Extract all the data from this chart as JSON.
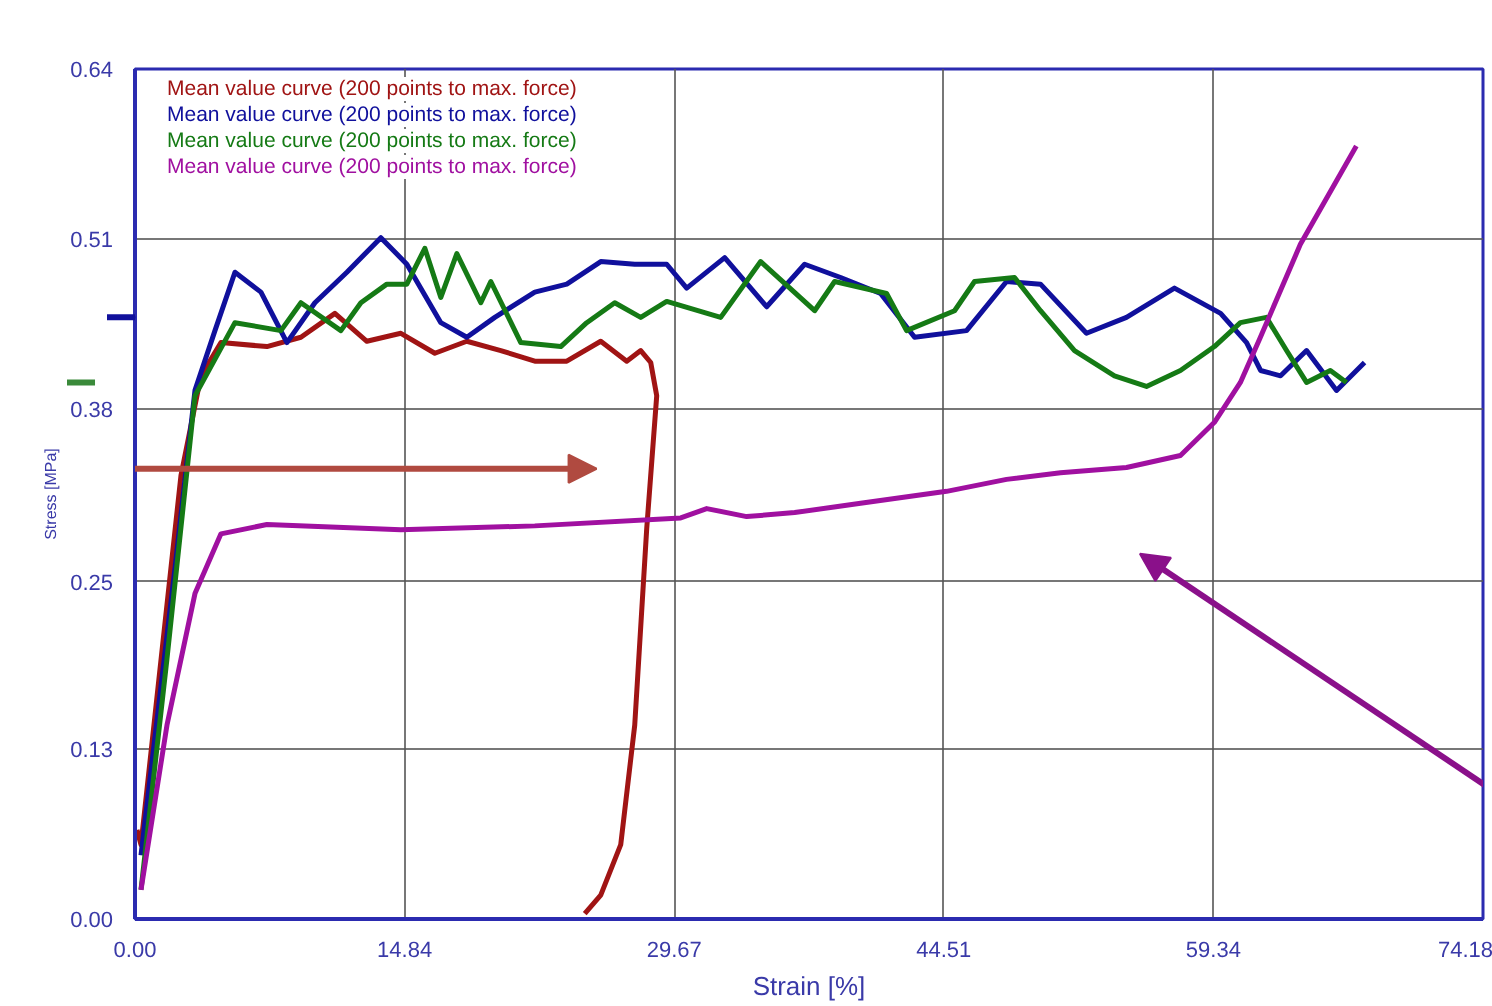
{
  "chart_data": {
    "type": "line",
    "xlabel": "Strain [%]",
    "ylabel": "Stress [MPa]",
    "xlim": [
      0,
      74.18
    ],
    "ylim": [
      0,
      0.64
    ],
    "xticks": [
      {
        "value": 0,
        "label": "0.00"
      },
      {
        "value": 14.836,
        "label": "14.84"
      },
      {
        "value": 29.672,
        "label": "29.67"
      },
      {
        "value": 44.508,
        "label": "44.51"
      },
      {
        "value": 59.344,
        "label": "59.34"
      },
      {
        "value": 74.18,
        "label": "74.18"
      }
    ],
    "yticks": [
      {
        "value": 0,
        "label": "0.00"
      },
      {
        "value": 0.128,
        "label": "0.13"
      },
      {
        "value": 0.254,
        "label": "0.25"
      },
      {
        "value": 0.384,
        "label": "0.38"
      },
      {
        "value": 0.512,
        "label": "0.51"
      },
      {
        "value": 0.64,
        "label": "0.64"
      }
    ],
    "grid": true,
    "legend": "top left",
    "series": [
      {
        "name": "Mean value curve (200 points to max. force)",
        "color": "#a01414",
        "x": [
          0.11,
          0.33,
          2.53,
          3.63,
          4.73,
          7.26,
          9.13,
          11.0,
          12.76,
          14.63,
          16.5,
          18.26,
          20.13,
          22.0,
          23.76,
          25.63,
          27.06,
          27.83,
          28.38,
          28.71,
          28.16,
          27.5,
          26.73,
          25.63,
          24.75
        ],
        "values": [
          0.067,
          0.056,
          0.334,
          0.409,
          0.434,
          0.431,
          0.438,
          0.456,
          0.435,
          0.441,
          0.426,
          0.435,
          0.428,
          0.42,
          0.42,
          0.435,
          0.42,
          0.428,
          0.419,
          0.394,
          0.294,
          0.146,
          0.056,
          0.018,
          0.004
        ]
      },
      {
        "name": "Mean value curve (200 points to max. force)",
        "color": "#10109c",
        "x": [
          0.33,
          2.2,
          3.3,
          4.4,
          5.5,
          6.93,
          8.36,
          9.9,
          11.66,
          13.53,
          14.96,
          16.83,
          18.26,
          19.8,
          22.0,
          23.76,
          25.63,
          27.5,
          29.26,
          30.36,
          32.45,
          34.76,
          36.85,
          38.83,
          41.03,
          42.9,
          45.76,
          47.96,
          49.83,
          52.36,
          54.56,
          57.2,
          59.74,
          61.17,
          61.94,
          63.04,
          64.47,
          66.12,
          67.66
        ],
        "values": [
          0.048,
          0.264,
          0.398,
          0.443,
          0.487,
          0.472,
          0.434,
          0.464,
          0.487,
          0.513,
          0.493,
          0.449,
          0.438,
          0.453,
          0.472,
          0.478,
          0.495,
          0.493,
          0.493,
          0.475,
          0.498,
          0.461,
          0.493,
          0.483,
          0.471,
          0.438,
          0.443,
          0.48,
          0.478,
          0.441,
          0.453,
          0.475,
          0.456,
          0.434,
          0.413,
          0.409,
          0.428,
          0.398,
          0.419
        ]
      },
      {
        "name": "Mean value curve (200 points to max. force)",
        "color": "#157a15",
        "x": [
          0.33,
          1.76,
          3.3,
          5.5,
          8.03,
          9.13,
          11.33,
          12.43,
          13.86,
          14.96,
          15.95,
          16.83,
          17.71,
          19.03,
          19.58,
          21.23,
          23.43,
          24.86,
          26.4,
          27.83,
          29.26,
          32.23,
          34.43,
          37.4,
          38.5,
          41.36,
          42.46,
          45.1,
          46.2,
          48.4,
          49.83,
          51.7,
          53.9,
          55.66,
          57.53,
          59.4,
          60.83,
          62.26,
          63.37,
          64.47,
          65.78,
          66.67
        ],
        "values": [
          0.022,
          0.196,
          0.394,
          0.449,
          0.443,
          0.464,
          0.443,
          0.464,
          0.478,
          0.478,
          0.505,
          0.468,
          0.501,
          0.464,
          0.48,
          0.434,
          0.431,
          0.449,
          0.464,
          0.453,
          0.465,
          0.453,
          0.495,
          0.458,
          0.48,
          0.471,
          0.443,
          0.458,
          0.48,
          0.483,
          0.458,
          0.428,
          0.409,
          0.401,
          0.413,
          0.431,
          0.449,
          0.453,
          0.428,
          0.404,
          0.413,
          0.404
        ]
      },
      {
        "name": "Mean value curve (200 points to max. force)",
        "color": "#a010a0",
        "x": [
          0.33,
          1.76,
          3.3,
          4.73,
          7.26,
          14.63,
          22.0,
          30.03,
          31.46,
          33.66,
          36.3,
          39.93,
          44.66,
          47.96,
          50.93,
          54.56,
          57.53,
          59.4,
          60.83,
          61.93,
          64.13,
          67.21
        ],
        "values": [
          0.022,
          0.146,
          0.245,
          0.29,
          0.297,
          0.293,
          0.296,
          0.302,
          0.309,
          0.303,
          0.306,
          0.313,
          0.322,
          0.331,
          0.336,
          0.34,
          0.349,
          0.374,
          0.404,
          0.438,
          0.508,
          0.582
        ]
      }
    ]
  }
}
